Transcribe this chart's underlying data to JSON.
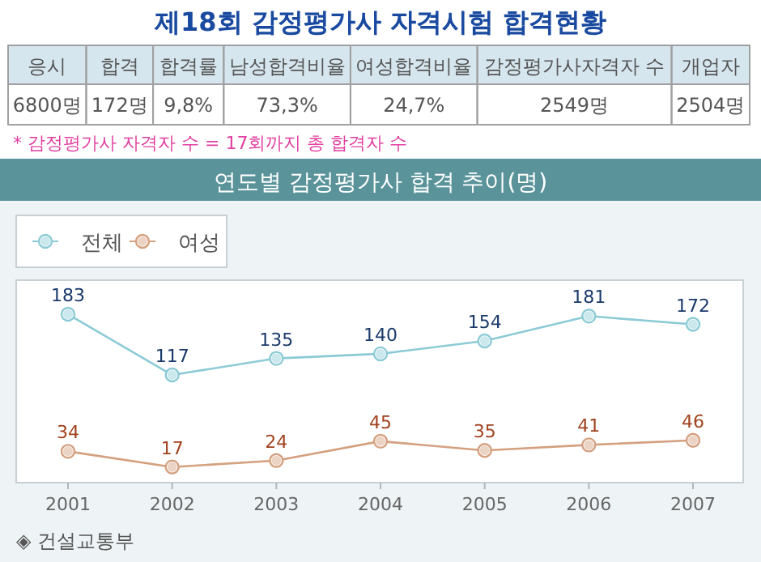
{
  "chart_data": [
    {
      "type": "other",
      "title": "제18회 감정평가사 자격시험 합격현황",
      "categories": [
        "응시",
        "합격",
        "합격률",
        "남성합격비율",
        "여성합격비율",
        "감정평가사자격자 수",
        "개업자"
      ],
      "value_labels": [
        "6800명",
        "172명",
        "9,8%",
        "73,3%",
        "24,7%",
        "2549명",
        "2504명"
      ],
      "annotations": [
        "* 감정평가사 자격자 수 = 17회까지 총 합격자 수"
      ]
    },
    {
      "type": "line",
      "title": "연도별 감정평가사 합격 추이(명)",
      "categories": [
        "2001",
        "2002",
        "2003",
        "2004",
        "2005",
        "2006",
        "2007"
      ],
      "series": [
        {
          "name": "전체",
          "color": "#8ccbd6",
          "values": [
            183,
            117,
            135,
            140,
            154,
            181,
            172
          ]
        },
        {
          "name": "여성",
          "color": "#d4a07f",
          "values": [
            34,
            17,
            24,
            45,
            35,
            41,
            46
          ]
        }
      ],
      "ylim": [
        0,
        220
      ],
      "data_labels": true,
      "legend": "top left",
      "marker": "circle",
      "annotations": [
        "◈ 건설교통부"
      ]
    }
  ]
}
